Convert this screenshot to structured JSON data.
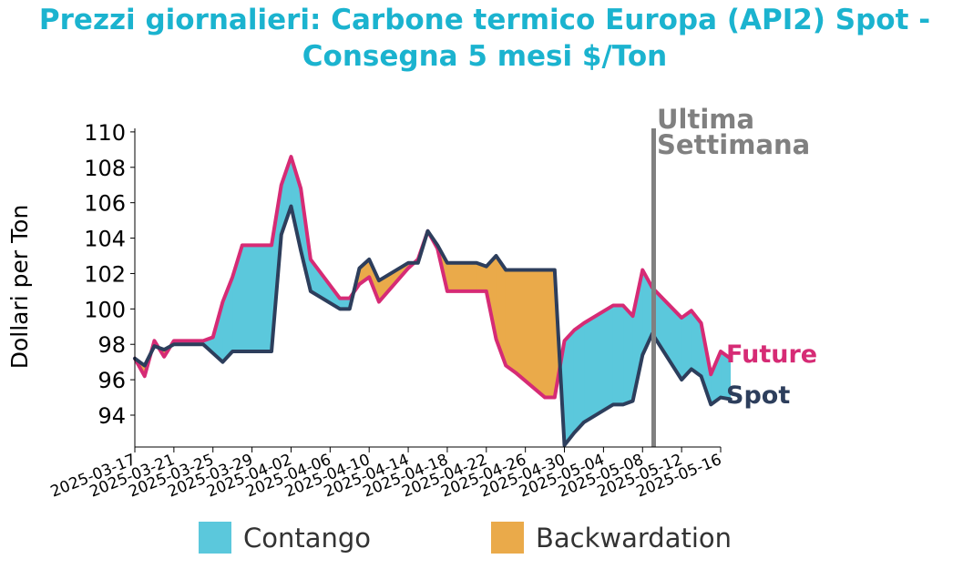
{
  "chart_data": {
    "type": "area",
    "title_line1": "Prezzi giornalieri: Carbone termico Europa (API2) Spot -",
    "title_line2": "Consegna 5 mesi $/Ton",
    "ylabel": "Dollari per Ton",
    "ylim": [
      92.2,
      110.2
    ],
    "y_ticks": [
      94,
      96,
      98,
      100,
      102,
      104,
      106,
      108,
      110
    ],
    "x_ticks": [
      "2025-03-17",
      "2025-03-21",
      "2025-03-25",
      "2025-03-29",
      "2025-04-02",
      "2025-04-06",
      "2025-04-10",
      "2025-04-14",
      "2025-04-18",
      "2025-04-22",
      "2025-04-26",
      "2025-04-30",
      "2025-05-04",
      "2025-05-08",
      "2025-05-12",
      "2025-05-16"
    ],
    "x_start": "2025-03-17",
    "x_end": "2025-05-16",
    "marker": {
      "date": "2025-05-09",
      "label_line1": "Ultima",
      "label_line2": "Settimana",
      "color": "#808080"
    },
    "series": [
      {
        "name": "Future",
        "color": "#d62b75",
        "points": [
          [
            "2025-03-17",
            97.2
          ],
          [
            "2025-03-18",
            96.2
          ],
          [
            "2025-03-19",
            98.2
          ],
          [
            "2025-03-20",
            97.3
          ],
          [
            "2025-03-21",
            98.2
          ],
          [
            "2025-03-24",
            98.2
          ],
          [
            "2025-03-25",
            98.4
          ],
          [
            "2025-03-26",
            100.4
          ],
          [
            "2025-03-27",
            101.8
          ],
          [
            "2025-03-28",
            103.6
          ],
          [
            "2025-03-31",
            103.6
          ],
          [
            "2025-04-01",
            107.0
          ],
          [
            "2025-04-02",
            108.6
          ],
          [
            "2025-04-03",
            106.8
          ],
          [
            "2025-04-04",
            102.8
          ],
          [
            "2025-04-07",
            100.6
          ],
          [
            "2025-04-08",
            100.6
          ],
          [
            "2025-04-09",
            101.4
          ],
          [
            "2025-04-10",
            101.8
          ],
          [
            "2025-04-11",
            100.4
          ],
          [
            "2025-04-14",
            102.3
          ],
          [
            "2025-04-15",
            102.8
          ],
          [
            "2025-04-16",
            104.4
          ],
          [
            "2025-04-17",
            103.4
          ],
          [
            "2025-04-18",
            101.0
          ],
          [
            "2025-04-21",
            101.0
          ],
          [
            "2025-04-22",
            101.0
          ],
          [
            "2025-04-23",
            98.3
          ],
          [
            "2025-04-24",
            96.8
          ],
          [
            "2025-04-25",
            96.4
          ],
          [
            "2025-04-28",
            95.0
          ],
          [
            "2025-04-29",
            95.0
          ],
          [
            "2025-04-30",
            98.2
          ],
          [
            "2025-05-01",
            98.8
          ],
          [
            "2025-05-02",
            99.2
          ],
          [
            "2025-05-05",
            100.2
          ],
          [
            "2025-05-06",
            100.2
          ],
          [
            "2025-05-07",
            99.6
          ],
          [
            "2025-05-08",
            102.2
          ],
          [
            "2025-05-09",
            101.2
          ],
          [
            "2025-05-12",
            99.5
          ],
          [
            "2025-05-13",
            99.9
          ],
          [
            "2025-05-14",
            99.2
          ],
          [
            "2025-05-15",
            96.3
          ],
          [
            "2025-05-16",
            97.6
          ],
          [
            "2025-05-17",
            97.2
          ]
        ]
      },
      {
        "name": "Spot",
        "color": "#2d3e5c",
        "points": [
          [
            "2025-03-17",
            97.2
          ],
          [
            "2025-03-18",
            96.8
          ],
          [
            "2025-03-19",
            97.9
          ],
          [
            "2025-03-20",
            97.7
          ],
          [
            "2025-03-21",
            98.0
          ],
          [
            "2025-03-24",
            98.0
          ],
          [
            "2025-03-25",
            97.5
          ],
          [
            "2025-03-26",
            97.0
          ],
          [
            "2025-03-27",
            97.6
          ],
          [
            "2025-03-28",
            97.6
          ],
          [
            "2025-03-31",
            97.6
          ],
          [
            "2025-04-01",
            104.2
          ],
          [
            "2025-04-02",
            105.8
          ],
          [
            "2025-04-03",
            103.3
          ],
          [
            "2025-04-04",
            101.0
          ],
          [
            "2025-04-07",
            100.0
          ],
          [
            "2025-04-08",
            100.0
          ],
          [
            "2025-04-09",
            102.3
          ],
          [
            "2025-04-10",
            102.8
          ],
          [
            "2025-04-11",
            101.6
          ],
          [
            "2025-04-14",
            102.6
          ],
          [
            "2025-04-15",
            102.6
          ],
          [
            "2025-04-16",
            104.4
          ],
          [
            "2025-04-17",
            103.6
          ],
          [
            "2025-04-18",
            102.6
          ],
          [
            "2025-04-21",
            102.6
          ],
          [
            "2025-04-22",
            102.4
          ],
          [
            "2025-04-23",
            103.0
          ],
          [
            "2025-04-24",
            102.2
          ],
          [
            "2025-04-25",
            102.2
          ],
          [
            "2025-04-28",
            102.2
          ],
          [
            "2025-04-29",
            102.2
          ],
          [
            "2025-04-30",
            92.3
          ],
          [
            "2025-05-01",
            93.0
          ],
          [
            "2025-05-02",
            93.6
          ],
          [
            "2025-05-05",
            94.6
          ],
          [
            "2025-05-06",
            94.6
          ],
          [
            "2025-05-07",
            94.8
          ],
          [
            "2025-05-08",
            97.4
          ],
          [
            "2025-05-09",
            98.6
          ],
          [
            "2025-05-12",
            96.0
          ],
          [
            "2025-05-13",
            96.6
          ],
          [
            "2025-05-14",
            96.2
          ],
          [
            "2025-05-15",
            94.6
          ],
          [
            "2025-05-16",
            95.0
          ],
          [
            "2025-05-17",
            94.9
          ]
        ]
      }
    ],
    "fills": {
      "contango": {
        "label": "Contango",
        "color": "#5bc8dc"
      },
      "backwardation": {
        "label": "Backwardation",
        "color": "#eaaa4a"
      }
    }
  }
}
